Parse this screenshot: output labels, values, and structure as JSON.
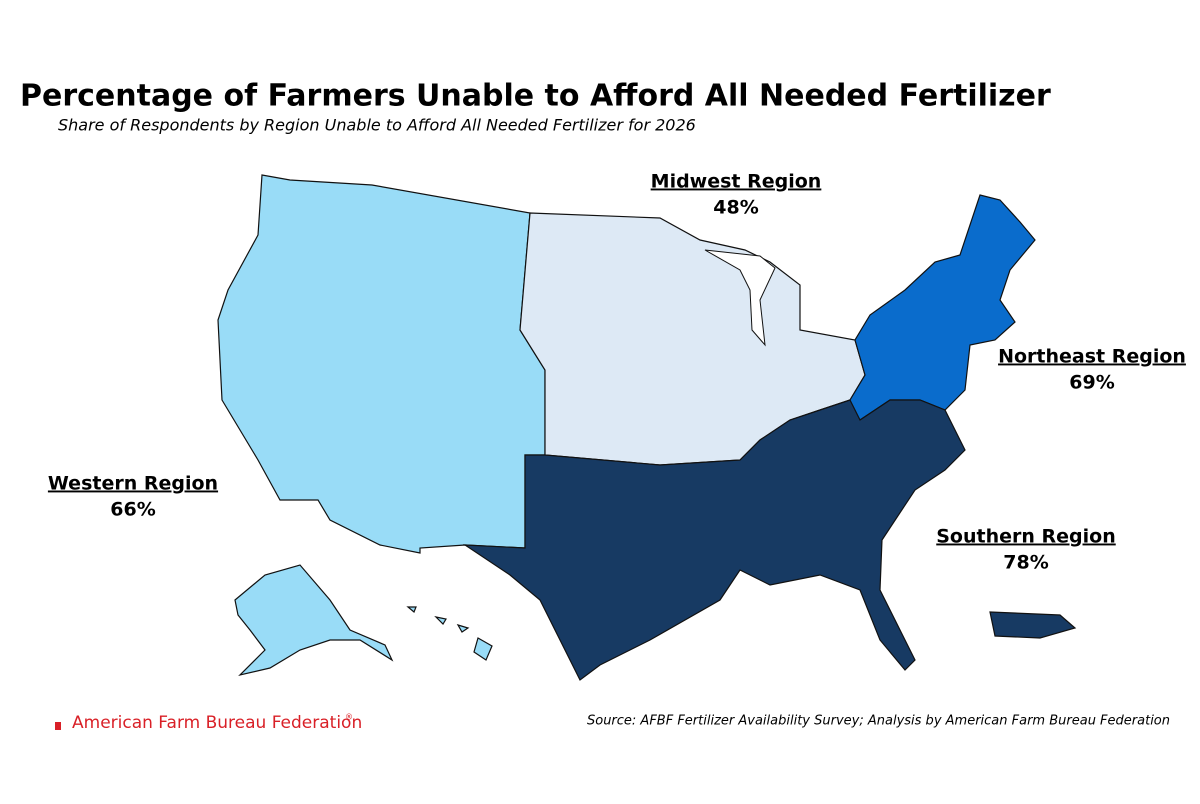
{
  "chart_data": {
    "type": "map",
    "title": "Percentage of Farmers Unable to Afford All Needed Fertilizer",
    "subtitle": "Share of Respondents by Region Unable to Afford All Needed Fertilizer for 2026",
    "categories": [
      "Western Region",
      "Midwest Region",
      "Northeast Region",
      "Southern Region"
    ],
    "values": [
      66,
      48,
      69,
      78
    ],
    "value_labels": [
      "66%",
      "48%",
      "69%",
      "78%"
    ],
    "colors": [
      "#99dcf7",
      "#dde9f5",
      "#0a6ccc",
      "#173a63"
    ],
    "source": "Source: AFBF Fertilizer Availability Survey; Analysis by American Farm Bureau Federation",
    "organization": "American Farm Bureau Federation",
    "registered_mark": "®"
  }
}
